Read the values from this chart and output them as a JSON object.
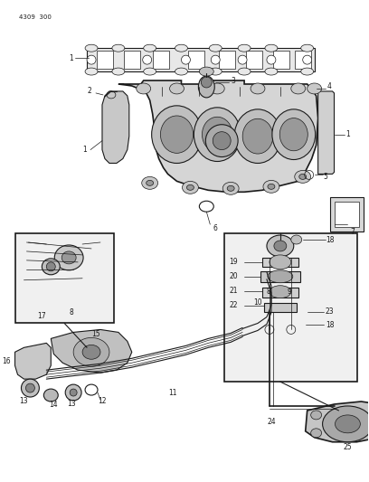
{
  "bg_color": "#ffffff",
  "line_color": "#1a1a1a",
  "fig_width": 4.08,
  "fig_height": 5.33,
  "dpi": 100,
  "header_text": "4309  300",
  "label_fs": 5.5,
  "header_fs": 5.0
}
